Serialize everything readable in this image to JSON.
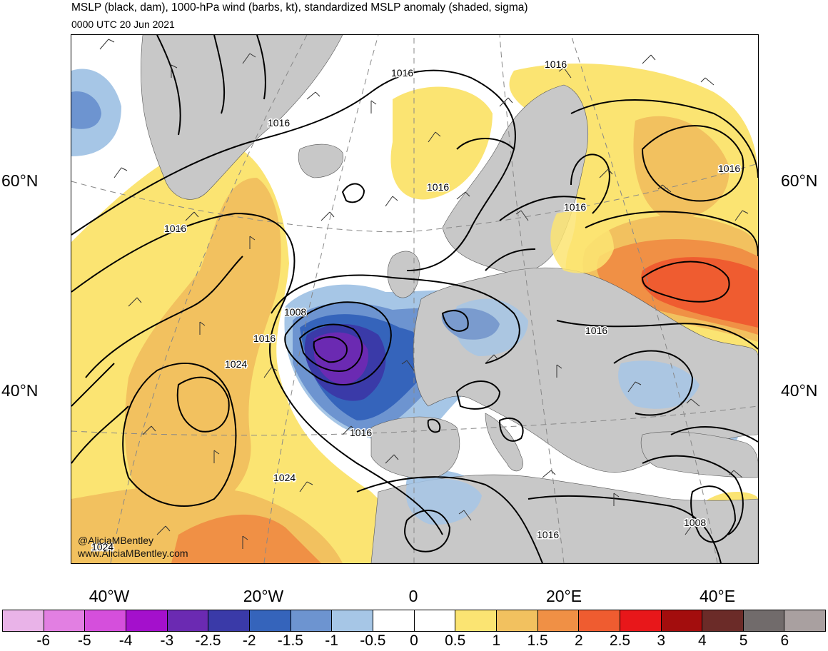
{
  "header": {
    "title": "MSLP (black, dam), 1000-hPa wind (barbs, kt), standardized MSLP anomaly (shaded, sigma)",
    "valid_time": "0000 UTC 20 Jun 2021"
  },
  "axes": {
    "lat_left": [
      "60°N",
      "40°N"
    ],
    "lat_right": [
      "60°N",
      "40°N"
    ],
    "lon_bottom": [
      "40°W",
      "20°W",
      "0",
      "20°E",
      "40°E"
    ]
  },
  "isobar_labels": [
    "1016",
    "1016",
    "1016",
    "1016",
    "1016",
    "1016",
    "1016",
    "1008",
    "1016",
    "1024",
    "1016",
    "1024",
    "1016",
    "1008",
    "1016",
    "1024"
  ],
  "credits": {
    "handle": "@AliciaMBentley",
    "website": "www.AliciaMBentley.com"
  },
  "colorbar": {
    "tick_labels": [
      "-6",
      "-5",
      "-4",
      "-3",
      "-2.5",
      "-2",
      "-1.5",
      "-1",
      "-0.5",
      "0",
      "0.5",
      "1",
      "1.5",
      "2",
      "2.5",
      "3",
      "4",
      "5",
      "6"
    ],
    "colors": [
      "#e9b3e8",
      "#e27fe2",
      "#d54fdc",
      "#a410cc",
      "#6b2ab2",
      "#3a3aa8",
      "#3564bb",
      "#6d94d0",
      "#a6c6e6",
      "#ffffff",
      "#ffffff",
      "#fbe472",
      "#f2c15f",
      "#f09045",
      "#ef5c30",
      "#e8171a",
      "#a30d0d",
      "#6b2b28",
      "#716b6b",
      "#a9a0a0"
    ]
  },
  "colors": {
    "land": "#c8c8c8",
    "anomaly_positive_1": "#fbe472",
    "anomaly_positive_2": "#f2c15f",
    "anomaly_positive_3": "#f09045",
    "anomaly_positive_4": "#ef5c30",
    "anomaly_negative_1": "#a6c6e6",
    "anomaly_negative_2": "#6d94d0",
    "anomaly_negative_3": "#3564bb",
    "anomaly_negative_4": "#6b2ab2"
  }
}
